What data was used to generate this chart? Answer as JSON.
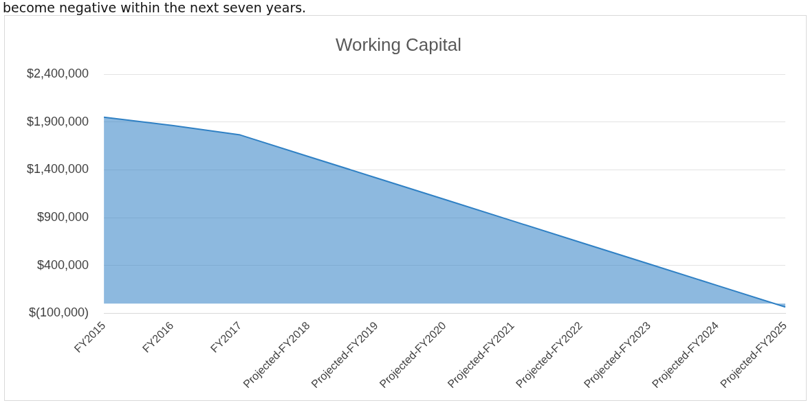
{
  "chart_data": {
    "type": "area",
    "title": "Working Capital",
    "annotations": [
      "become negative within the next seven years."
    ],
    "categories": [
      "FY2015",
      "FY2016",
      "FY2017",
      "Projected-FY2018",
      "Projected-FY2019",
      "Projected-FY2020",
      "Projected-FY2021",
      "Projected-FY2022",
      "Projected-FY2023",
      "Projected-FY2024",
      "Projected-FY2025"
    ],
    "series": [
      {
        "color": "#2f80c4",
        "values": [
          1950000,
          1865000,
          1765000,
          1540000,
          1315000,
          1090000,
          865000,
          640000,
          415000,
          190000,
          -35000
        ]
      }
    ],
    "ylim": [
      -100000,
      2400000
    ],
    "yticks": [
      {
        "value": -100000,
        "label": "$(100,000)"
      },
      {
        "value": 400000,
        "label": "$400,000"
      },
      {
        "value": 900000,
        "label": "$900,000"
      },
      {
        "value": 1400000,
        "label": "$1,400,000"
      },
      {
        "value": 1900000,
        "label": "$1,900,000"
      },
      {
        "value": 2400000,
        "label": "$2,400,000"
      }
    ],
    "grid": "y",
    "legend": false
  }
}
